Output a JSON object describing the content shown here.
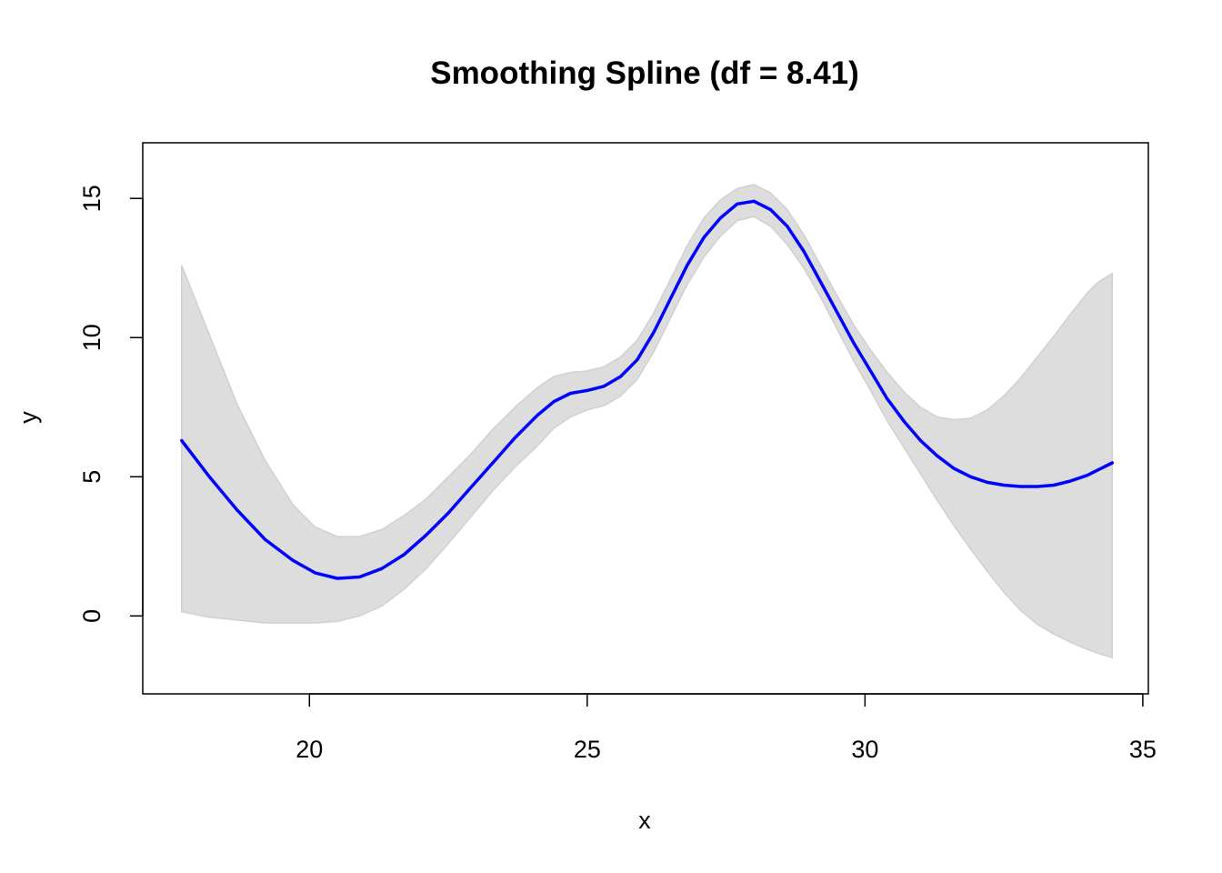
{
  "chart_data": {
    "type": "line",
    "title": "Smoothing Spline (df = 8.41)",
    "xlabel": "x",
    "ylabel": "y",
    "xlim": [
      17,
      35.1
    ],
    "ylim": [
      -2.8,
      17
    ],
    "x_ticks": [
      20,
      25,
      30,
      35
    ],
    "x_tick_labels": [
      "20",
      "25",
      "30",
      "35"
    ],
    "y_ticks": [
      0,
      5,
      10,
      15
    ],
    "y_tick_labels": [
      "0",
      "5",
      "10",
      "15"
    ],
    "grid": false,
    "colors": {
      "fit": "#0000ff",
      "band": "#dddddd",
      "band_edge": "#d0d0d0",
      "frame": "#000000"
    },
    "series": [
      {
        "role": "fit",
        "x": [
          17.7,
          18.2,
          18.7,
          19.2,
          19.7,
          20.1,
          20.5,
          20.9,
          21.3,
          21.7,
          22.1,
          22.5,
          22.9,
          23.3,
          23.7,
          24.1,
          24.4,
          24.7,
          25.0,
          25.3,
          25.6,
          25.9,
          26.2,
          26.5,
          26.8,
          27.1,
          27.4,
          27.7,
          28.0,
          28.3,
          28.6,
          28.9,
          29.2,
          29.5,
          29.8,
          30.1,
          30.4,
          30.7,
          31.0,
          31.3,
          31.6,
          31.9,
          32.2,
          32.5,
          32.8,
          33.1,
          33.4,
          33.7,
          34.0,
          34.2,
          34.45
        ],
        "y": [
          6.3,
          5.0,
          3.8,
          2.75,
          2.0,
          1.55,
          1.35,
          1.4,
          1.7,
          2.2,
          2.9,
          3.7,
          4.6,
          5.5,
          6.4,
          7.2,
          7.7,
          8.0,
          8.1,
          8.25,
          8.6,
          9.2,
          10.2,
          11.4,
          12.6,
          13.6,
          14.3,
          14.8,
          14.9,
          14.6,
          14.0,
          13.1,
          12.0,
          10.9,
          9.8,
          8.8,
          7.8,
          7.0,
          6.3,
          5.75,
          5.3,
          5.0,
          4.8,
          4.7,
          4.65,
          4.65,
          4.7,
          4.85,
          5.05,
          5.25,
          5.5
        ]
      },
      {
        "role": "confidence-band-upper",
        "x": [
          17.7,
          18.2,
          18.7,
          19.2,
          19.7,
          20.1,
          20.5,
          20.9,
          21.3,
          21.7,
          22.1,
          22.5,
          22.9,
          23.3,
          23.7,
          24.1,
          24.4,
          24.7,
          25.0,
          25.3,
          25.6,
          25.9,
          26.2,
          26.5,
          26.8,
          27.1,
          27.4,
          27.7,
          28.0,
          28.3,
          28.6,
          28.9,
          29.2,
          29.5,
          29.8,
          30.1,
          30.4,
          30.7,
          31.0,
          31.3,
          31.6,
          31.9,
          32.2,
          32.5,
          32.8,
          33.1,
          33.4,
          33.7,
          34.0,
          34.2,
          34.45
        ],
        "y": [
          12.6,
          10.1,
          7.6,
          5.6,
          4.0,
          3.2,
          2.85,
          2.85,
          3.1,
          3.6,
          4.2,
          5.0,
          5.8,
          6.7,
          7.5,
          8.2,
          8.6,
          8.75,
          8.8,
          8.95,
          9.3,
          9.9,
          10.9,
          12.1,
          13.3,
          14.3,
          14.95,
          15.35,
          15.5,
          15.2,
          14.6,
          13.7,
          12.6,
          11.5,
          10.45,
          9.55,
          8.75,
          8.05,
          7.5,
          7.15,
          7.05,
          7.1,
          7.4,
          7.9,
          8.55,
          9.3,
          10.05,
          10.85,
          11.6,
          12.0,
          12.3
        ]
      },
      {
        "role": "confidence-band-lower",
        "x": [
          17.7,
          18.2,
          18.7,
          19.2,
          19.7,
          20.1,
          20.5,
          20.9,
          21.3,
          21.7,
          22.1,
          22.5,
          22.9,
          23.3,
          23.7,
          24.1,
          24.4,
          24.7,
          25.0,
          25.3,
          25.6,
          25.9,
          26.2,
          26.5,
          26.8,
          27.1,
          27.4,
          27.7,
          28.0,
          28.3,
          28.6,
          28.9,
          29.2,
          29.5,
          29.8,
          30.1,
          30.4,
          30.7,
          31.0,
          31.3,
          31.6,
          31.9,
          32.2,
          32.5,
          32.8,
          33.1,
          33.4,
          33.7,
          34.0,
          34.2,
          34.45
        ],
        "y": [
          0.15,
          -0.05,
          -0.15,
          -0.25,
          -0.25,
          -0.25,
          -0.2,
          0.0,
          0.35,
          0.95,
          1.7,
          2.6,
          3.55,
          4.5,
          5.35,
          6.1,
          6.75,
          7.15,
          7.4,
          7.55,
          7.9,
          8.5,
          9.5,
          10.7,
          11.9,
          12.9,
          13.65,
          14.2,
          14.35,
          14.0,
          13.35,
          12.5,
          11.45,
          10.3,
          9.15,
          8.1,
          7.0,
          6.05,
          5.1,
          4.15,
          3.25,
          2.4,
          1.6,
          0.85,
          0.2,
          -0.3,
          -0.65,
          -0.95,
          -1.2,
          -1.35,
          -1.5
        ]
      }
    ]
  }
}
